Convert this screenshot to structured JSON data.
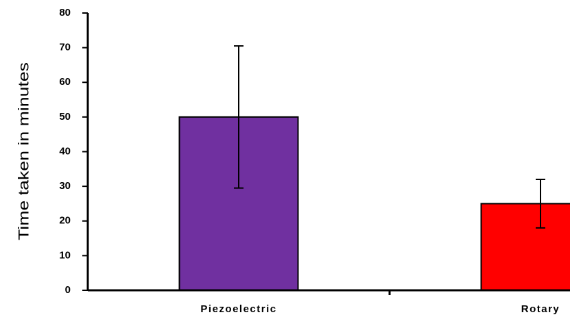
{
  "chart_data": {
    "type": "bar",
    "y_label": "Time taken in minutes",
    "categories": [
      "Piezoelectric",
      "Rotary"
    ],
    "values": [
      50,
      25
    ],
    "errors": [
      20.5,
      7
    ],
    "colors": [
      "#7030a0",
      "#ff0000"
    ],
    "ylim": [
      0,
      80
    ],
    "yticks": [
      0,
      10,
      20,
      30,
      40,
      50,
      60,
      70,
      80
    ]
  }
}
